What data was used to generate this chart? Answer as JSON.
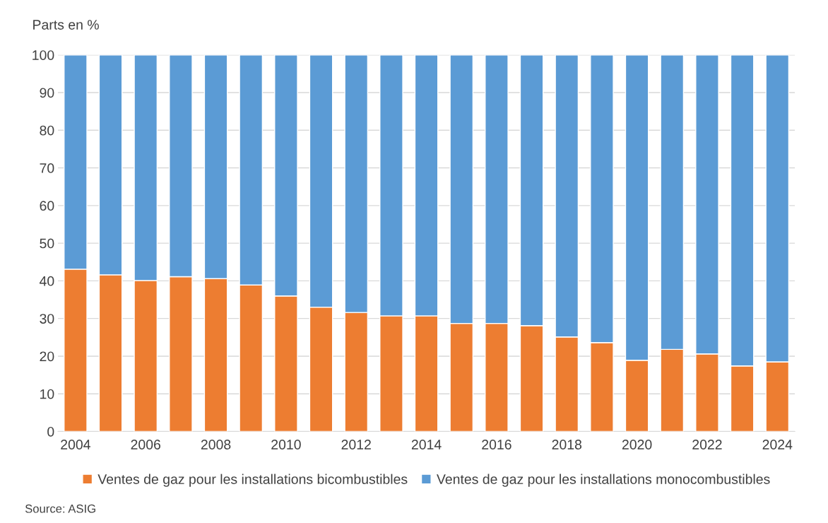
{
  "chart_data": {
    "type": "bar",
    "stacked": true,
    "ylabel": "Parts en %",
    "categories": [
      "2004",
      null,
      "2006",
      null,
      "2008",
      null,
      "2010",
      null,
      "2012",
      null,
      "2014",
      null,
      "2016",
      null,
      "2018",
      null,
      "2020",
      null,
      "2022",
      null,
      "2024"
    ],
    "series": [
      {
        "name": "Ventes de gaz pour les installations bicombustibles",
        "color": "#ed7d31",
        "values": [
          43.1,
          41.6,
          40.1,
          41.1,
          40.6,
          38.9,
          36.0,
          33.0,
          31.6,
          30.7,
          30.7,
          28.7,
          28.7,
          28.1,
          25.1,
          23.6,
          18.9,
          21.8,
          20.6,
          17.4,
          18.5
        ]
      },
      {
        "name": "Ventes de gaz pour les installations monocombustibles",
        "color": "#5b9bd5",
        "values": [
          56.9,
          58.4,
          59.9,
          58.9,
          59.4,
          61.1,
          64.0,
          67.0,
          68.4,
          69.3,
          69.3,
          71.3,
          71.3,
          71.9,
          74.9,
          76.4,
          81.1,
          78.2,
          79.4,
          82.6,
          81.5
        ]
      }
    ],
    "ylim": [
      0,
      100
    ],
    "yticks": [
      0,
      10,
      20,
      30,
      40,
      50,
      60,
      70,
      80,
      90,
      100
    ],
    "grid": "y",
    "legend": "bottom",
    "annotations": [
      "Source: ASIG"
    ]
  }
}
